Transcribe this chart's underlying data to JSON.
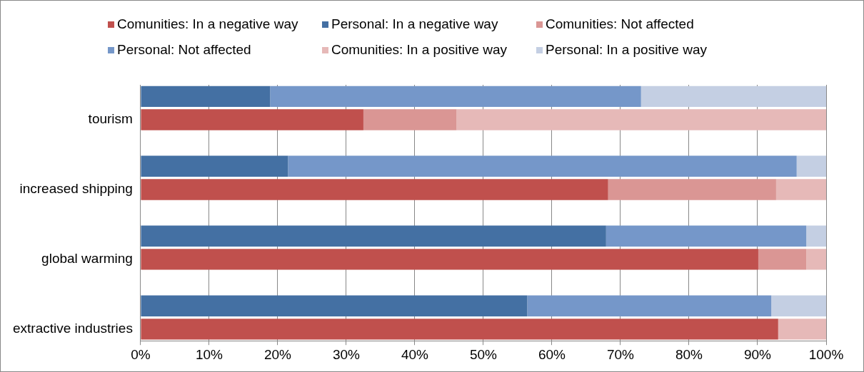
{
  "chart_data": {
    "type": "bar",
    "orientation": "horizontal",
    "stacked": true,
    "categories": [
      null,
      "tourism",
      null,
      null,
      "increased shipping",
      null,
      null,
      "global warming",
      null,
      null,
      "extractive industries"
    ],
    "series": [
      {
        "name": "Comunities: In a negative way",
        "color": "#c0504d",
        "values": [
          null,
          32.5,
          null,
          null,
          68.2,
          null,
          null,
          90.1,
          null,
          null,
          93.0
        ]
      },
      {
        "name": "Personal: In a negative way",
        "color": "#4470a3",
        "values": [
          18.9,
          null,
          null,
          21.5,
          null,
          null,
          67.9,
          null,
          null,
          56.4,
          null
        ]
      },
      {
        "name": "Comunities: Not affected",
        "color": "#da9694",
        "values": [
          null,
          13.6,
          null,
          null,
          24.5,
          null,
          null,
          7.0,
          null,
          null,
          0
        ]
      },
      {
        "name": "Personal: Not affected",
        "color": "#7597c9",
        "values": [
          54.1,
          null,
          null,
          74.2,
          null,
          null,
          29.2,
          null,
          null,
          35.6,
          null
        ]
      },
      {
        "name": "Comunities: In a positive way",
        "color": "#e6b9b8",
        "values": [
          null,
          53.9,
          null,
          null,
          7.3,
          null,
          null,
          2.9,
          null,
          null,
          7.0
        ]
      },
      {
        "name": "Personal: In a positive way",
        "color": "#c4cfe3",
        "values": [
          27.0,
          null,
          null,
          4.3,
          null,
          null,
          2.9,
          null,
          null,
          8.0,
          null
        ]
      }
    ],
    "xlim": [
      0,
      100
    ],
    "xticks": [
      {
        "value": 0,
        "label": "0%"
      },
      {
        "value": 10,
        "label": "10%"
      },
      {
        "value": 20,
        "label": "20%"
      },
      {
        "value": 30,
        "label": "30%"
      },
      {
        "value": 40,
        "label": "40%"
      },
      {
        "value": 50,
        "label": "50%"
      },
      {
        "value": 60,
        "label": "60%"
      },
      {
        "value": 70,
        "label": "70%"
      },
      {
        "value": 80,
        "label": "80%"
      },
      {
        "value": 90,
        "label": "90%"
      },
      {
        "value": 100,
        "label": "100%"
      }
    ],
    "grid": "x",
    "legend": "top"
  }
}
